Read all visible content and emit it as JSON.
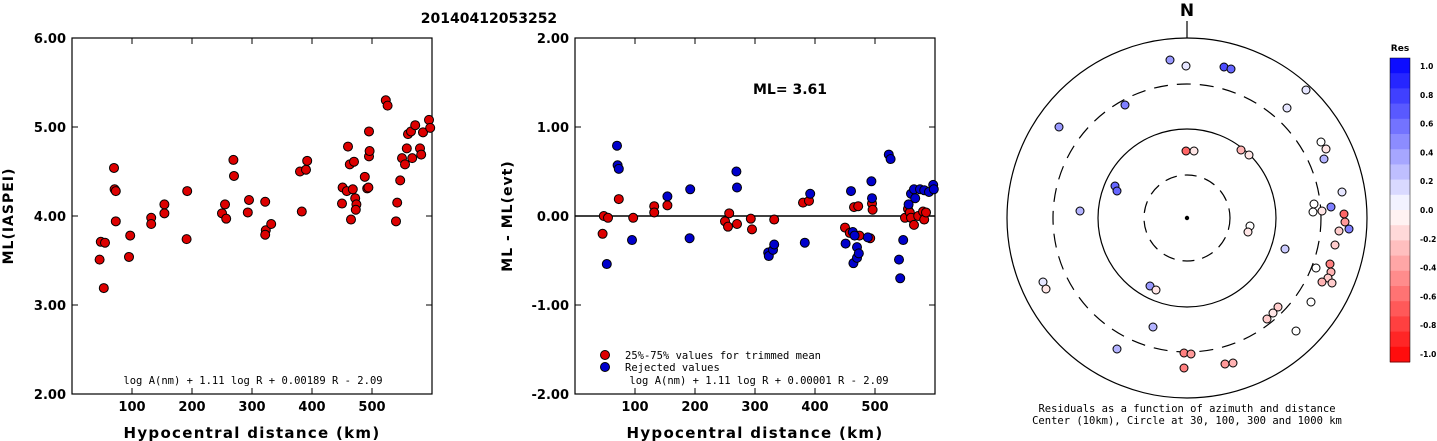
{
  "title": "20140412053252",
  "chart_data": [
    {
      "type": "scatter",
      "xlabel": "Hypocentral distance (km)",
      "ylabel": "ML(IASPEI)",
      "xlim": [
        0,
        600
      ],
      "ylim": [
        2.0,
        6.0
      ],
      "x_ticks": [
        100,
        200,
        300,
        400,
        500
      ],
      "x_tick_labels": [
        "100",
        "200",
        "300",
        "400",
        "500"
      ],
      "y_ticks": [
        2,
        3,
        4,
        5,
        6
      ],
      "y_tick_labels": [
        "2.00",
        "3.00",
        "4.00",
        "5.00",
        "6.00"
      ],
      "annotation": "log A(nm) + 1.11 log R + 0.00189 R - 2.09",
      "marker_color": "#dd0000",
      "points": [
        [
          48,
          3.71
        ],
        [
          46,
          3.51
        ],
        [
          55,
          3.7
        ],
        [
          53,
          3.19
        ],
        [
          70,
          4.54
        ],
        [
          71,
          4.3
        ],
        [
          73,
          4.28
        ],
        [
          73,
          3.94
        ],
        [
          97,
          3.78
        ],
        [
          95,
          3.54
        ],
        [
          132,
          3.98
        ],
        [
          132,
          3.91
        ],
        [
          154,
          4.13
        ],
        [
          154,
          4.03
        ],
        [
          192,
          4.28
        ],
        [
          191,
          3.74
        ],
        [
          250,
          4.03
        ],
        [
          255,
          4.13
        ],
        [
          257,
          3.97
        ],
        [
          269,
          4.63
        ],
        [
          270,
          4.45
        ],
        [
          295,
          4.18
        ],
        [
          293,
          4.04
        ],
        [
          322,
          4.16
        ],
        [
          323,
          3.84
        ],
        [
          322,
          3.79
        ],
        [
          332,
          3.91
        ],
        [
          380,
          4.5
        ],
        [
          390,
          4.52
        ],
        [
          392,
          4.62
        ],
        [
          383,
          4.05
        ],
        [
          450,
          4.14
        ],
        [
          451,
          4.32
        ],
        [
          458,
          4.28
        ],
        [
          460,
          4.78
        ],
        [
          463,
          4.58
        ],
        [
          465,
          3.96
        ],
        [
          470,
          4.61
        ],
        [
          468,
          4.3
        ],
        [
          472,
          4.2
        ],
        [
          474,
          4.13
        ],
        [
          473,
          4.07
        ],
        [
          488,
          4.44
        ],
        [
          492,
          4.31
        ],
        [
          494,
          4.32
        ],
        [
          495,
          4.67
        ],
        [
          496,
          4.73
        ],
        [
          495,
          4.95
        ],
        [
          523,
          5.3
        ],
        [
          526,
          5.24
        ],
        [
          540,
          3.94
        ],
        [
          542,
          4.15
        ],
        [
          547,
          4.4
        ],
        [
          550,
          4.65
        ],
        [
          555,
          4.58
        ],
        [
          558,
          4.76
        ],
        [
          560,
          4.92
        ],
        [
          565,
          4.95
        ],
        [
          567,
          4.65
        ],
        [
          572,
          5.02
        ],
        [
          580,
          4.76
        ],
        [
          582,
          4.69
        ],
        [
          585,
          4.94
        ],
        [
          595,
          5.08
        ],
        [
          597,
          4.99
        ]
      ]
    },
    {
      "type": "scatter",
      "xlabel": "Hypocentral distance (km)",
      "ylabel": "ML - ML(evt)",
      "xlim": [
        0,
        600
      ],
      "ylim": [
        -2.0,
        2.0
      ],
      "x_ticks": [
        100,
        200,
        300,
        400,
        500
      ],
      "x_tick_labels": [
        "100",
        "200",
        "300",
        "400",
        "500"
      ],
      "y_ticks": [
        -2,
        -1,
        0,
        1,
        2
      ],
      "y_tick_labels": [
        "-2.00",
        "-1.00",
        "0.00",
        "1.00",
        "2.00"
      ],
      "ml_label": "ML= 3.61",
      "annotation": "log A(nm) + 1.11 log R + 0.00001 R - 2.09",
      "legend": [
        {
          "label": "25%-75% values for trimmed mean",
          "color": "#dd0000"
        },
        {
          "label": "Rejected values",
          "color": "#0000cc"
        }
      ],
      "series": [
        {
          "name": "25%-75% values for trimmed mean",
          "color": "#dd0000",
          "points": [
            [
              48,
              0.0
            ],
            [
              55,
              -0.02
            ],
            [
              46,
              -0.2
            ],
            [
              73,
              0.19
            ],
            [
              97,
              -0.02
            ],
            [
              132,
              0.11
            ],
            [
              132,
              0.04
            ],
            [
              154,
              0.12
            ],
            [
              250,
              -0.06
            ],
            [
              255,
              -0.12
            ],
            [
              257,
              0.03
            ],
            [
              270,
              -0.09
            ],
            [
              295,
              -0.15
            ],
            [
              293,
              -0.03
            ],
            [
              332,
              -0.04
            ],
            [
              380,
              0.15
            ],
            [
              390,
              0.17
            ],
            [
              450,
              -0.13
            ],
            [
              458,
              -0.19
            ],
            [
              465,
              0.1
            ],
            [
              472,
              0.11
            ],
            [
              474,
              -0.22
            ],
            [
              492,
              -0.25
            ],
            [
              495,
              0.14
            ],
            [
              496,
              0.07
            ],
            [
              550,
              -0.02
            ],
            [
              555,
              0.08
            ],
            [
              558,
              0.04
            ],
            [
              560,
              -0.02
            ],
            [
              565,
              -0.1
            ],
            [
              572,
              0.0
            ],
            [
              580,
              0.05
            ],
            [
              582,
              -0.04
            ],
            [
              585,
              0.04
            ]
          ]
        },
        {
          "name": "Rejected values",
          "color": "#0000cc",
          "points": [
            [
              53,
              -0.54
            ],
            [
              70,
              0.79
            ],
            [
              71,
              0.57
            ],
            [
              73,
              0.53
            ],
            [
              95,
              -0.27
            ],
            [
              154,
              0.22
            ],
            [
              192,
              0.3
            ],
            [
              191,
              -0.25
            ],
            [
              269,
              0.5
            ],
            [
              270,
              0.32
            ],
            [
              322,
              -0.41
            ],
            [
              323,
              -0.45
            ],
            [
              330,
              -0.38
            ],
            [
              332,
              -0.32
            ],
            [
              383,
              -0.3
            ],
            [
              392,
              0.25
            ],
            [
              451,
              -0.31
            ],
            [
              460,
              0.28
            ],
            [
              463,
              -0.18
            ],
            [
              466,
              -0.22
            ],
            [
              464,
              -0.53
            ],
            [
              470,
              -0.35
            ],
            [
              470,
              -0.47
            ],
            [
              473,
              -0.42
            ],
            [
              488,
              -0.24
            ],
            [
              494,
              0.39
            ],
            [
              495,
              0.2
            ],
            [
              523,
              0.69
            ],
            [
              526,
              0.64
            ],
            [
              540,
              -0.49
            ],
            [
              542,
              -0.7
            ],
            [
              547,
              -0.27
            ],
            [
              556,
              0.13
            ],
            [
              560,
              0.25
            ],
            [
              565,
              0.3
            ],
            [
              567,
              0.2
            ],
            [
              575,
              0.3
            ],
            [
              582,
              0.29
            ],
            [
              590,
              0.27
            ],
            [
              597,
              0.35
            ],
            [
              598,
              0.3
            ]
          ]
        }
      ]
    },
    {
      "type": "scatter",
      "subtype": "polar-residuals",
      "north_label": "N",
      "caption_line1": "Residuals as a function of azimuth and distance",
      "caption_line2": "Center (10km), Circle at 30, 100, 300 and 1000 km",
      "colorbar_title": "Res",
      "colorbar_ticks": [
        "1.0",
        "0.8",
        "0.6",
        "0.4",
        "0.2",
        "0.0",
        "-0.2",
        "-0.4",
        "-0.6",
        "-0.8",
        "-1.0"
      ],
      "colorbar_range": [
        -1.0,
        1.0
      ],
      "rings_km": [
        30,
        100,
        300,
        1000
      ],
      "points_xy": [
        [
          1170,
          60,
          0.4
        ],
        [
          1186,
          66,
          0.1
        ],
        [
          1224,
          67,
          0.7
        ],
        [
          1231,
          69,
          0.6
        ],
        [
          1306,
          90,
          0.1
        ],
        [
          1125,
          105,
          0.5
        ],
        [
          1287,
          108,
          0.1
        ],
        [
          1321,
          142,
          0.0
        ],
        [
          1059,
          127,
          0.4
        ],
        [
          1326,
          149,
          -0.1
        ],
        [
          1324,
          159,
          0.3
        ],
        [
          1186,
          151,
          -0.6
        ],
        [
          1194,
          151,
          -0.1
        ],
        [
          1241,
          150,
          -0.3
        ],
        [
          1249,
          155,
          -0.1
        ],
        [
          1342,
          192,
          0.1
        ],
        [
          1331,
          207,
          0.5
        ],
        [
          1314,
          204,
          0.0
        ],
        [
          1313,
          212,
          0.0
        ],
        [
          1322,
          211,
          -0.1
        ],
        [
          1344,
          214,
          -0.6
        ],
        [
          1345,
          222,
          -0.4
        ],
        [
          1349,
          229,
          0.5
        ],
        [
          1339,
          231,
          -0.2
        ],
        [
          1335,
          245,
          -0.2
        ],
        [
          1115,
          186,
          0.6
        ],
        [
          1117,
          191,
          0.6
        ],
        [
          1080,
          211,
          0.3
        ],
        [
          1250,
          226,
          0.0
        ],
        [
          1248,
          232,
          -0.1
        ],
        [
          1285,
          249,
          0.2
        ],
        [
          1316,
          268,
          0.0
        ],
        [
          1330,
          264,
          -0.5
        ],
        [
          1331,
          272,
          -0.3
        ],
        [
          1328,
          278,
          -0.2
        ],
        [
          1322,
          282,
          -0.3
        ],
        [
          1332,
          283,
          -0.2
        ],
        [
          1150,
          286,
          0.4
        ],
        [
          1156,
          290,
          -0.1
        ],
        [
          1043,
          282,
          0.1
        ],
        [
          1046,
          289,
          -0.1
        ],
        [
          1311,
          302,
          0.0
        ],
        [
          1278,
          307,
          -0.2
        ],
        [
          1273,
          313,
          -0.1
        ],
        [
          1267,
          319,
          -0.2
        ],
        [
          1153,
          327,
          0.3
        ],
        [
          1296,
          331,
          0.0
        ],
        [
          1117,
          349,
          0.3
        ],
        [
          1184,
          353,
          -0.5
        ],
        [
          1191,
          354,
          -0.4
        ],
        [
          1184,
          368,
          -0.5
        ],
        [
          1225,
          364,
          -0.4
        ],
        [
          1233,
          363,
          -0.3
        ]
      ]
    }
  ]
}
